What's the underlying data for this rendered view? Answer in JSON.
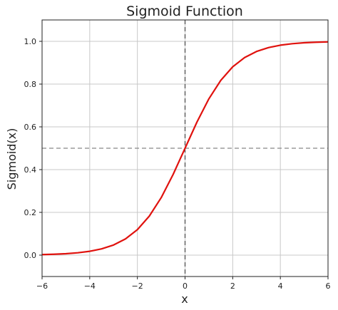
{
  "chart_data": {
    "type": "line",
    "title": "Sigmoid Function",
    "xlabel": "x",
    "ylabel": "Sigmoid(x)",
    "xlim": [
      -6,
      6
    ],
    "ylim": [
      -0.1,
      1.1
    ],
    "xticks": [
      -6,
      -4,
      -2,
      0,
      2,
      4,
      6
    ],
    "yticks": [
      0.0,
      0.2,
      0.4,
      0.6,
      0.8,
      1.0
    ],
    "xtick_labels": [
      "−6",
      "−4",
      "−2",
      "0",
      "2",
      "4",
      "6"
    ],
    "ytick_labels": [
      "0.0",
      "0.2",
      "0.4",
      "0.6",
      "0.8",
      "1.0"
    ],
    "grid": true,
    "series": [
      {
        "color": "#e0120e",
        "x": [
          -6,
          -5.5,
          -5,
          -4.5,
          -4,
          -3.5,
          -3,
          -2.5,
          -2,
          -1.5,
          -1,
          -0.5,
          0,
          0.5,
          1,
          1.5,
          2,
          2.5,
          3,
          3.5,
          4,
          4.5,
          5,
          5.5,
          6
        ],
        "y": [
          0.0025,
          0.0041,
          0.0067,
          0.011,
          0.018,
          0.0293,
          0.0474,
          0.0759,
          0.1192,
          0.1824,
          0.2689,
          0.3775,
          0.5,
          0.6225,
          0.7311,
          0.8176,
          0.8808,
          0.9241,
          0.9526,
          0.9707,
          0.982,
          0.989,
          0.9933,
          0.9959,
          0.9975
        ]
      }
    ],
    "reference_lines": [
      {
        "orientation": "horizontal",
        "value": 0.5,
        "style": "dashed",
        "color": "#888888"
      },
      {
        "orientation": "vertical",
        "value": 0,
        "style": "dashed",
        "color": "#444444"
      }
    ]
  }
}
